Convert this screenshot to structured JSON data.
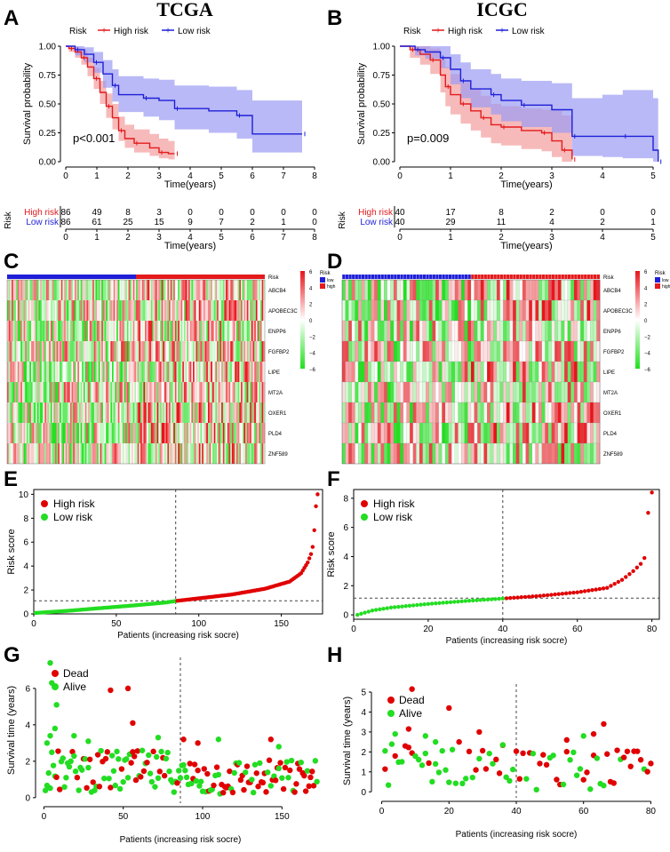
{
  "colors": {
    "high": "#e41a1c",
    "low": "#1f1fd8",
    "high_fill": "#f4a3a3",
    "low_fill": "#9b9bf4",
    "dead": "#e00000",
    "alive": "#22dd22",
    "hm_red": "#e8141a",
    "hm_green": "#21e01f"
  },
  "panels": {
    "A": {
      "letter": "A",
      "title": "TCGA"
    },
    "B": {
      "letter": "B",
      "title": "ICGC"
    },
    "C": {
      "letter": "C"
    },
    "D": {
      "letter": "D"
    },
    "E": {
      "letter": "E"
    },
    "F": {
      "letter": "F"
    },
    "G": {
      "letter": "G"
    },
    "H": {
      "letter": "H"
    }
  },
  "chart_data": [
    {
      "id": "A",
      "type": "line",
      "title": "TCGA",
      "xlabel": "Time(years)",
      "ylabel": "Survival probability",
      "xlim": [
        0,
        8
      ],
      "ylim": [
        0,
        1
      ],
      "xticks": [
        0,
        1,
        2,
        3,
        4,
        5,
        6,
        7,
        8
      ],
      "yticks": [
        "0.00",
        "0.25",
        "0.50",
        "0.75",
        "1.00"
      ],
      "legend_title": "Risk",
      "legend": [
        "High risk",
        "Low risk"
      ],
      "pvalue": "p<0.001",
      "series": [
        {
          "name": "High risk",
          "steps": [
            [
              0,
              1
            ],
            [
              0.1,
              0.98
            ],
            [
              0.3,
              0.95
            ],
            [
              0.5,
              0.9
            ],
            [
              0.7,
              0.82
            ],
            [
              0.9,
              0.72
            ],
            [
              1.1,
              0.6
            ],
            [
              1.3,
              0.48
            ],
            [
              1.5,
              0.38
            ],
            [
              1.7,
              0.27
            ],
            [
              1.9,
              0.2
            ],
            [
              2.2,
              0.16
            ],
            [
              2.7,
              0.12
            ],
            [
              3.0,
              0.08
            ],
            [
              3.3,
              0.07
            ],
            [
              3.5,
              0.07
            ]
          ],
          "upper": [
            1,
            1,
            0.99,
            0.96,
            0.9,
            0.81,
            0.7,
            0.59,
            0.5,
            0.39,
            0.32,
            0.28,
            0.24,
            0.2,
            0.18,
            0.18
          ],
          "lower": [
            1,
            0.95,
            0.9,
            0.84,
            0.74,
            0.63,
            0.5,
            0.38,
            0.28,
            0.18,
            0.12,
            0.08,
            0.05,
            0.03,
            0.02,
            0.02
          ]
        },
        {
          "name": "Low risk",
          "steps": [
            [
              0,
              1
            ],
            [
              0.3,
              0.97
            ],
            [
              0.6,
              0.93
            ],
            [
              0.9,
              0.86
            ],
            [
              1.2,
              0.76
            ],
            [
              1.5,
              0.66
            ],
            [
              1.7,
              0.58
            ],
            [
              2.5,
              0.55
            ],
            [
              3.0,
              0.53
            ],
            [
              3.5,
              0.46
            ],
            [
              4.6,
              0.44
            ],
            [
              5.5,
              0.4
            ],
            [
              6.0,
              0.24
            ],
            [
              7.6,
              0.24
            ]
          ],
          "upper": [
            1,
            1,
            0.99,
            0.95,
            0.88,
            0.8,
            0.74,
            0.72,
            0.71,
            0.66,
            0.65,
            0.62,
            0.53,
            0.53
          ],
          "lower": [
            1,
            0.92,
            0.86,
            0.77,
            0.64,
            0.52,
            0.43,
            0.39,
            0.36,
            0.28,
            0.25,
            0.2,
            0.08,
            0.08
          ]
        }
      ],
      "risk_table": {
        "label": "Risk",
        "rows": [
          {
            "name": "High risk",
            "values": [
              86,
              49,
              8,
              3,
              0,
              0,
              0,
              0,
              0
            ]
          },
          {
            "name": "Low risk",
            "values": [
              86,
              61,
              25,
              15,
              9,
              7,
              2,
              1,
              0
            ]
          }
        ],
        "xlabel": "Time(years)"
      }
    },
    {
      "id": "B",
      "type": "line",
      "title": "ICGC",
      "xlabel": "Time(years)",
      "ylabel": "Survival probability",
      "xlim": [
        0,
        5
      ],
      "ylim": [
        0,
        1
      ],
      "xticks": [
        0,
        1,
        2,
        3,
        4,
        5
      ],
      "yticks": [
        "0.00",
        "0.25",
        "0.50",
        "0.75",
        "1.00"
      ],
      "legend_title": "Risk",
      "legend": [
        "High risk",
        "Low risk"
      ],
      "pvalue": "p=0.009",
      "series": [
        {
          "name": "High risk",
          "steps": [
            [
              0,
              1
            ],
            [
              0.2,
              0.97
            ],
            [
              0.4,
              0.93
            ],
            [
              0.6,
              0.88
            ],
            [
              0.8,
              0.75
            ],
            [
              0.9,
              0.65
            ],
            [
              1.0,
              0.58
            ],
            [
              1.2,
              0.5
            ],
            [
              1.4,
              0.44
            ],
            [
              1.6,
              0.38
            ],
            [
              1.8,
              0.32
            ],
            [
              2.0,
              0.3
            ],
            [
              2.4,
              0.27
            ],
            [
              2.8,
              0.25
            ],
            [
              3.0,
              0.18
            ],
            [
              3.2,
              0.1
            ],
            [
              3.3,
              0.1
            ],
            [
              3.4,
              0.02
            ]
          ],
          "upper": [
            1,
            1,
            1,
            0.98,
            0.9,
            0.82,
            0.76,
            0.69,
            0.63,
            0.57,
            0.5,
            0.48,
            0.46,
            0.45,
            0.44,
            0.4,
            0.4,
            0.4
          ],
          "lower": [
            1,
            0.9,
            0.84,
            0.76,
            0.6,
            0.48,
            0.41,
            0.33,
            0.27,
            0.21,
            0.16,
            0.14,
            0.11,
            0.09,
            0.04,
            0.0,
            0.0,
            0.0
          ]
        },
        {
          "name": "Low risk",
          "steps": [
            [
              0,
              1
            ],
            [
              0.3,
              0.97
            ],
            [
              0.5,
              0.95
            ],
            [
              0.8,
              0.9
            ],
            [
              1.0,
              0.8
            ],
            [
              1.2,
              0.7
            ],
            [
              1.4,
              0.63
            ],
            [
              1.8,
              0.58
            ],
            [
              2.0,
              0.53
            ],
            [
              2.4,
              0.49
            ],
            [
              3.0,
              0.45
            ],
            [
              3.4,
              0.22
            ],
            [
              4.0,
              0.22
            ],
            [
              4.4,
              0.22
            ],
            [
              5.0,
              0.1
            ],
            [
              5.1,
              0.0
            ]
          ],
          "upper": [
            1,
            1,
            1,
            1,
            0.93,
            0.86,
            0.8,
            0.76,
            0.72,
            0.7,
            0.68,
            0.55,
            0.58,
            0.62,
            0.55,
            0.55
          ],
          "lower": [
            1,
            0.92,
            0.89,
            0.81,
            0.67,
            0.55,
            0.47,
            0.41,
            0.35,
            0.3,
            0.25,
            0.05,
            0.04,
            0.03,
            0.0,
            0.0
          ]
        }
      ],
      "risk_table": {
        "label": "Risk",
        "rows": [
          {
            "name": "High risk",
            "values": [
              40,
              17,
              8,
              2,
              0,
              0
            ]
          },
          {
            "name": "Low risk",
            "values": [
              40,
              29,
              11,
              4,
              2,
              1
            ]
          }
        ],
        "xlabel": "Time(years)"
      }
    },
    {
      "id": "C",
      "type": "heatmap",
      "genes": [
        "ABCB4",
        "APOBEC3C",
        "ENPP6",
        "FGFBP2",
        "LIPE",
        "MT2A",
        "OXER1",
        "PLD4",
        "ZNF589"
      ],
      "groups": [
        {
          "name": "low",
          "count": 86
        },
        {
          "name": "high",
          "count": 86
        }
      ],
      "annotation_label": "Risk",
      "legend_title": "Risk",
      "legend_groups": [
        "low",
        "high"
      ],
      "scale_ticks": [
        "6",
        "4",
        "2",
        "0",
        "−2",
        "−4",
        "−6"
      ]
    },
    {
      "id": "D",
      "type": "heatmap",
      "genes": [
        "ABCB4",
        "APOBEC3C",
        "ENPP6",
        "FGFBP2",
        "LIPE",
        "MT2A",
        "OXER1",
        "PLD4",
        "ZNF589"
      ],
      "groups": [
        {
          "name": "low",
          "count": 40
        },
        {
          "name": "high",
          "count": 40
        }
      ],
      "annotation_label": "Risk",
      "legend_title": "Risk",
      "legend_groups": [
        "low",
        "high"
      ],
      "scale_ticks": [
        "6",
        "4",
        "2",
        "0",
        "−2",
        "−4",
        "−6"
      ]
    },
    {
      "id": "E",
      "type": "scatter",
      "xlabel": "Patients (increasing risk socre)",
      "ylabel": "Risk score",
      "xlim": [
        0,
        175
      ],
      "ylim": [
        0,
        10.4
      ],
      "xticks": [
        0,
        50,
        100,
        150
      ],
      "yticks": [
        0,
        2,
        4,
        6,
        8,
        10
      ],
      "cutoff_x": 86,
      "cutoff_y": 1.1,
      "legend": [
        "High risk",
        "Low risk"
      ],
      "score_curve": {
        "n": 172,
        "low_n": 86,
        "knots": [
          [
            1,
            0.08
          ],
          [
            20,
            0.25
          ],
          [
            40,
            0.48
          ],
          [
            60,
            0.7
          ],
          [
            80,
            0.95
          ],
          [
            86,
            1.08
          ],
          [
            100,
            1.3
          ],
          [
            120,
            1.62
          ],
          [
            140,
            2.1
          ],
          [
            155,
            2.7
          ],
          [
            162,
            3.4
          ],
          [
            166,
            4.3
          ],
          [
            168,
            5.0
          ],
          [
            169,
            5.6
          ],
          [
            170,
            7.0
          ],
          [
            171,
            9.0
          ],
          [
            172,
            10.0
          ]
        ]
      }
    },
    {
      "id": "F",
      "type": "scatter",
      "xlabel": "Patients (increasing risk socre)",
      "ylabel": "Risk score",
      "xlim": [
        0,
        82
      ],
      "ylim": [
        -0.3,
        8.6
      ],
      "xticks": [
        0,
        20,
        40,
        60,
        80
      ],
      "yticks": [
        0,
        2,
        4,
        6,
        8
      ],
      "cutoff_x": 40,
      "cutoff_y": 1.15,
      "legend": [
        "High risk",
        "Low risk"
      ],
      "score_curve": {
        "n": 80,
        "low_n": 40,
        "knots": [
          [
            1,
            0.0
          ],
          [
            5,
            0.3
          ],
          [
            10,
            0.5
          ],
          [
            20,
            0.75
          ],
          [
            30,
            0.95
          ],
          [
            40,
            1.12
          ],
          [
            50,
            1.3
          ],
          [
            60,
            1.55
          ],
          [
            68,
            1.85
          ],
          [
            72,
            2.4
          ],
          [
            75,
            3.0
          ],
          [
            77,
            3.5
          ],
          [
            78,
            3.9
          ],
          [
            79,
            7.0
          ],
          [
            80,
            8.4
          ]
        ]
      }
    },
    {
      "id": "G",
      "type": "scatter",
      "xlabel": "Patients (increasing risk socre)",
      "ylabel": "Survival time (years)",
      "xlim": [
        -3,
        175
      ],
      "ylim": [
        -0.3,
        7.7
      ],
      "xticks": [
        0,
        50,
        100,
        150
      ],
      "yticks": [
        0,
        2,
        4,
        6
      ],
      "cutoff_x": 86,
      "legend": [
        "Dead",
        "Alive"
      ],
      "n": 172,
      "low_n": 86,
      "highlights": [
        {
          "x": 4,
          "y": 7.4,
          "s": "alive"
        },
        {
          "x": 5,
          "y": 6.3,
          "s": "alive"
        },
        {
          "x": 8,
          "y": 5.1,
          "s": "alive"
        },
        {
          "x": 2,
          "y": 3.0,
          "s": "alive"
        },
        {
          "x": 4,
          "y": 3.4,
          "s": "alive"
        },
        {
          "x": 7,
          "y": 3.8,
          "s": "alive"
        },
        {
          "x": 42,
          "y": 5.9,
          "s": "dead"
        },
        {
          "x": 53,
          "y": 6.0,
          "s": "dead"
        },
        {
          "x": 56,
          "y": 4.1,
          "s": "dead"
        },
        {
          "x": 19,
          "y": 3.4,
          "s": "alive"
        },
        {
          "x": 28,
          "y": 3.1,
          "s": "alive"
        },
        {
          "x": 72,
          "y": 3.3,
          "s": "alive"
        },
        {
          "x": 88,
          "y": 3.2,
          "s": "dead"
        },
        {
          "x": 97,
          "y": 3.0,
          "s": "dead"
        },
        {
          "x": 110,
          "y": 3.2,
          "s": "alive"
        },
        {
          "x": 143,
          "y": 3.2,
          "s": "dead"
        },
        {
          "x": 148,
          "y": 2.8,
          "s": "alive"
        }
      ]
    },
    {
      "id": "H",
      "type": "scatter",
      "xlabel": "Patients (increasing risk socre)",
      "ylabel": "Survival time (years)",
      "xlim": [
        -2,
        82
      ],
      "ylim": [
        -0.3,
        5.4
      ],
      "xticks": [
        0,
        20,
        40,
        60,
        80
      ],
      "yticks": [
        0,
        1,
        2,
        3,
        4,
        5
      ],
      "cutoff_x": 40,
      "legend": [
        "Dead",
        "Alive"
      ],
      "n": 80,
      "low_n": 40,
      "highlights": [
        {
          "x": 9,
          "y": 5.15,
          "s": "dead"
        },
        {
          "x": 20,
          "y": 4.2,
          "s": "dead"
        },
        {
          "x": 8,
          "y": 3.15,
          "s": "dead"
        },
        {
          "x": 66,
          "y": 3.4,
          "s": "dead"
        },
        {
          "x": 29,
          "y": 3.0,
          "s": "dead"
        },
        {
          "x": 4,
          "y": 2.9,
          "s": "alive"
        },
        {
          "x": 13,
          "y": 2.8,
          "s": "alive"
        },
        {
          "x": 60,
          "y": 2.8,
          "s": "alive"
        },
        {
          "x": 63,
          "y": 2.9,
          "s": "dead"
        },
        {
          "x": 55,
          "y": 2.6,
          "s": "dead"
        },
        {
          "x": 1,
          "y": 2.05,
          "s": "alive"
        },
        {
          "x": 36,
          "y": 2.35,
          "s": "alive"
        },
        {
          "x": 16,
          "y": 2.5,
          "s": "alive"
        }
      ]
    }
  ]
}
